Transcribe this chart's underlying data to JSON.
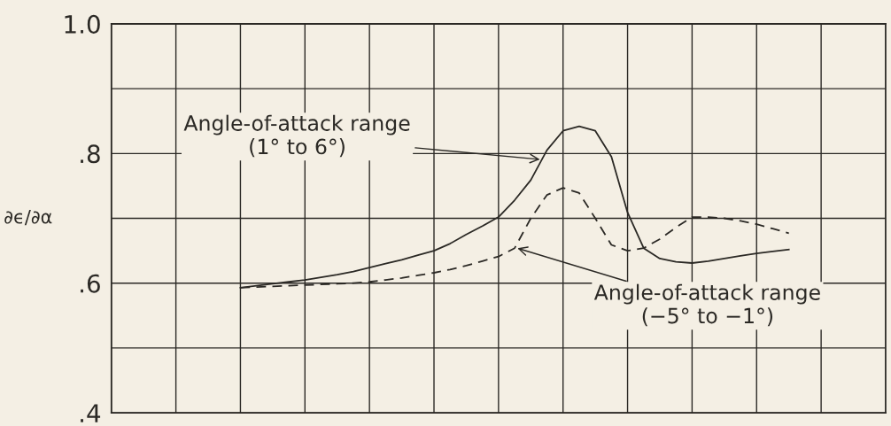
{
  "chart_data": {
    "type": "line",
    "ylabel": "∂ϵ/∂α",
    "categories": [
      null,
      null,
      null,
      null,
      null,
      null,
      null,
      null,
      null,
      null,
      null,
      null,
      null,
      null,
      null,
      null,
      null,
      null,
      null,
      null,
      null,
      null,
      null,
      null,
      null,
      null,
      null,
      null,
      null,
      null,
      null,
      null,
      null,
      null,
      null,
      null,
      null,
      null,
      null,
      null,
      null,
      null,
      null,
      null,
      null,
      null,
      null,
      null,
      null
    ],
    "series": [
      {
        "color": "#2b2925",
        "line_style": "solid",
        "values": [
          null,
          null,
          null,
          null,
          null,
          null,
          null,
          null,
          0.593,
          0.596,
          0.599,
          0.602,
          0.605,
          0.609,
          0.613,
          0.618,
          0.624,
          0.63,
          0.636,
          0.643,
          0.65,
          0.661,
          0.675,
          0.688,
          0.702,
          0.728,
          0.759,
          0.805,
          0.835,
          0.842,
          0.835,
          0.795,
          0.709,
          0.654,
          0.638,
          0.633,
          0.631,
          0.634,
          0.638,
          0.642,
          0.646,
          0.649,
          0.652,
          null,
          null,
          null,
          null,
          null,
          null
        ]
      },
      {
        "color": "#2b2925",
        "line_style": "dashed",
        "values": [
          null,
          null,
          null,
          null,
          null,
          null,
          null,
          null,
          0.593,
          0.594,
          0.595,
          0.596,
          0.597,
          0.598,
          0.599,
          0.6,
          0.602,
          0.605,
          0.608,
          0.612,
          0.616,
          0.621,
          0.627,
          0.634,
          0.641,
          0.654,
          0.7,
          0.736,
          0.747,
          0.739,
          0.7,
          0.659,
          0.65,
          0.654,
          0.668,
          0.686,
          0.702,
          0.702,
          0.7,
          0.696,
          0.691,
          0.684,
          0.677,
          null,
          null,
          null,
          null,
          null,
          null
        ]
      }
    ],
    "ylim": [
      0.4,
      1.0
    ],
    "yticks": [
      {
        "value": 0.4,
        "label": ".4"
      },
      {
        "value": 0.5,
        "label": null
      },
      {
        "value": 0.6,
        "label": ".6"
      },
      {
        "value": 0.7,
        "label": null
      },
      {
        "value": 0.8,
        "label": ".8"
      },
      {
        "value": 0.9,
        "label": null
      },
      {
        "value": 1.0,
        "label": "1.0"
      }
    ],
    "grid": true,
    "annotations": [
      "Angle-of-attack range\n(1° to 6°)",
      "Angle-of-attack range\n(−5° to −1°)"
    ]
  }
}
